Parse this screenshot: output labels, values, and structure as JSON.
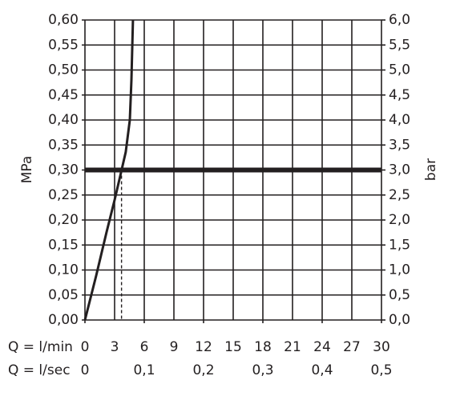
{
  "chart_data": {
    "type": "line",
    "x_label": "Q = l/min",
    "x2_label": "Q = l/sec",
    "y_label": "MPa",
    "y2_label": "bar",
    "xlim": [
      0,
      30
    ],
    "xticks": [
      0,
      3,
      6,
      9,
      12,
      15,
      18,
      21,
      24,
      27,
      30
    ],
    "x2lim": [
      0,
      0.5
    ],
    "x2ticks": [
      {
        "value": 0,
        "label": "0"
      },
      {
        "value": 0.1,
        "label": "0,1"
      },
      {
        "value": 0.2,
        "label": "0,2"
      },
      {
        "value": 0.3,
        "label": "0,3"
      },
      {
        "value": 0.4,
        "label": "0,4"
      },
      {
        "value": 0.5,
        "label": "0,5"
      }
    ],
    "ylim": [
      0,
      0.6
    ],
    "yticks": [
      {
        "value": 0,
        "label": "0,00"
      },
      {
        "value": 0.05,
        "label": "0,05"
      },
      {
        "value": 0.1,
        "label": "0,10"
      },
      {
        "value": 0.15,
        "label": "0,15"
      },
      {
        "value": 0.2,
        "label": "0,20"
      },
      {
        "value": 0.25,
        "label": "0,25"
      },
      {
        "value": 0.3,
        "label": "0,30"
      },
      {
        "value": 0.35,
        "label": "0,35"
      },
      {
        "value": 0.4,
        "label": "0,40"
      },
      {
        "value": 0.45,
        "label": "0,45"
      },
      {
        "value": 0.5,
        "label": "0,50"
      },
      {
        "value": 0.55,
        "label": "0,55"
      },
      {
        "value": 0.6,
        "label": "0,60"
      }
    ],
    "y2lim": [
      0,
      6
    ],
    "y2ticks": [
      {
        "value": 0,
        "label": "0,0"
      },
      {
        "value": 0.5,
        "label": "0,5"
      },
      {
        "value": 1,
        "label": "1,0"
      },
      {
        "value": 1.5,
        "label": "1,5"
      },
      {
        "value": 2,
        "label": "2,0"
      },
      {
        "value": 2.5,
        "label": "2,5"
      },
      {
        "value": 3,
        "label": "3,0"
      },
      {
        "value": 3.5,
        "label": "3,5"
      },
      {
        "value": 4,
        "label": "4,0"
      },
      {
        "value": 4.5,
        "label": "4,5"
      },
      {
        "value": 5,
        "label": "5,0"
      },
      {
        "value": 5.5,
        "label": "5,5"
      },
      {
        "value": 6,
        "label": "6,0"
      }
    ],
    "grid": true,
    "series": [
      {
        "color": "#231f20",
        "x": [
          0,
          1.13,
          2.19,
          3.0,
          3.57,
          4.13,
          4.54,
          4.7,
          4.86
        ],
        "values": [
          0,
          0.088,
          0.176,
          0.24,
          0.288,
          0.336,
          0.4,
          0.48,
          0.6
        ]
      }
    ],
    "hline": 0.3,
    "vline": {
      "x": 3.7,
      "ymax": 0.3
    }
  }
}
